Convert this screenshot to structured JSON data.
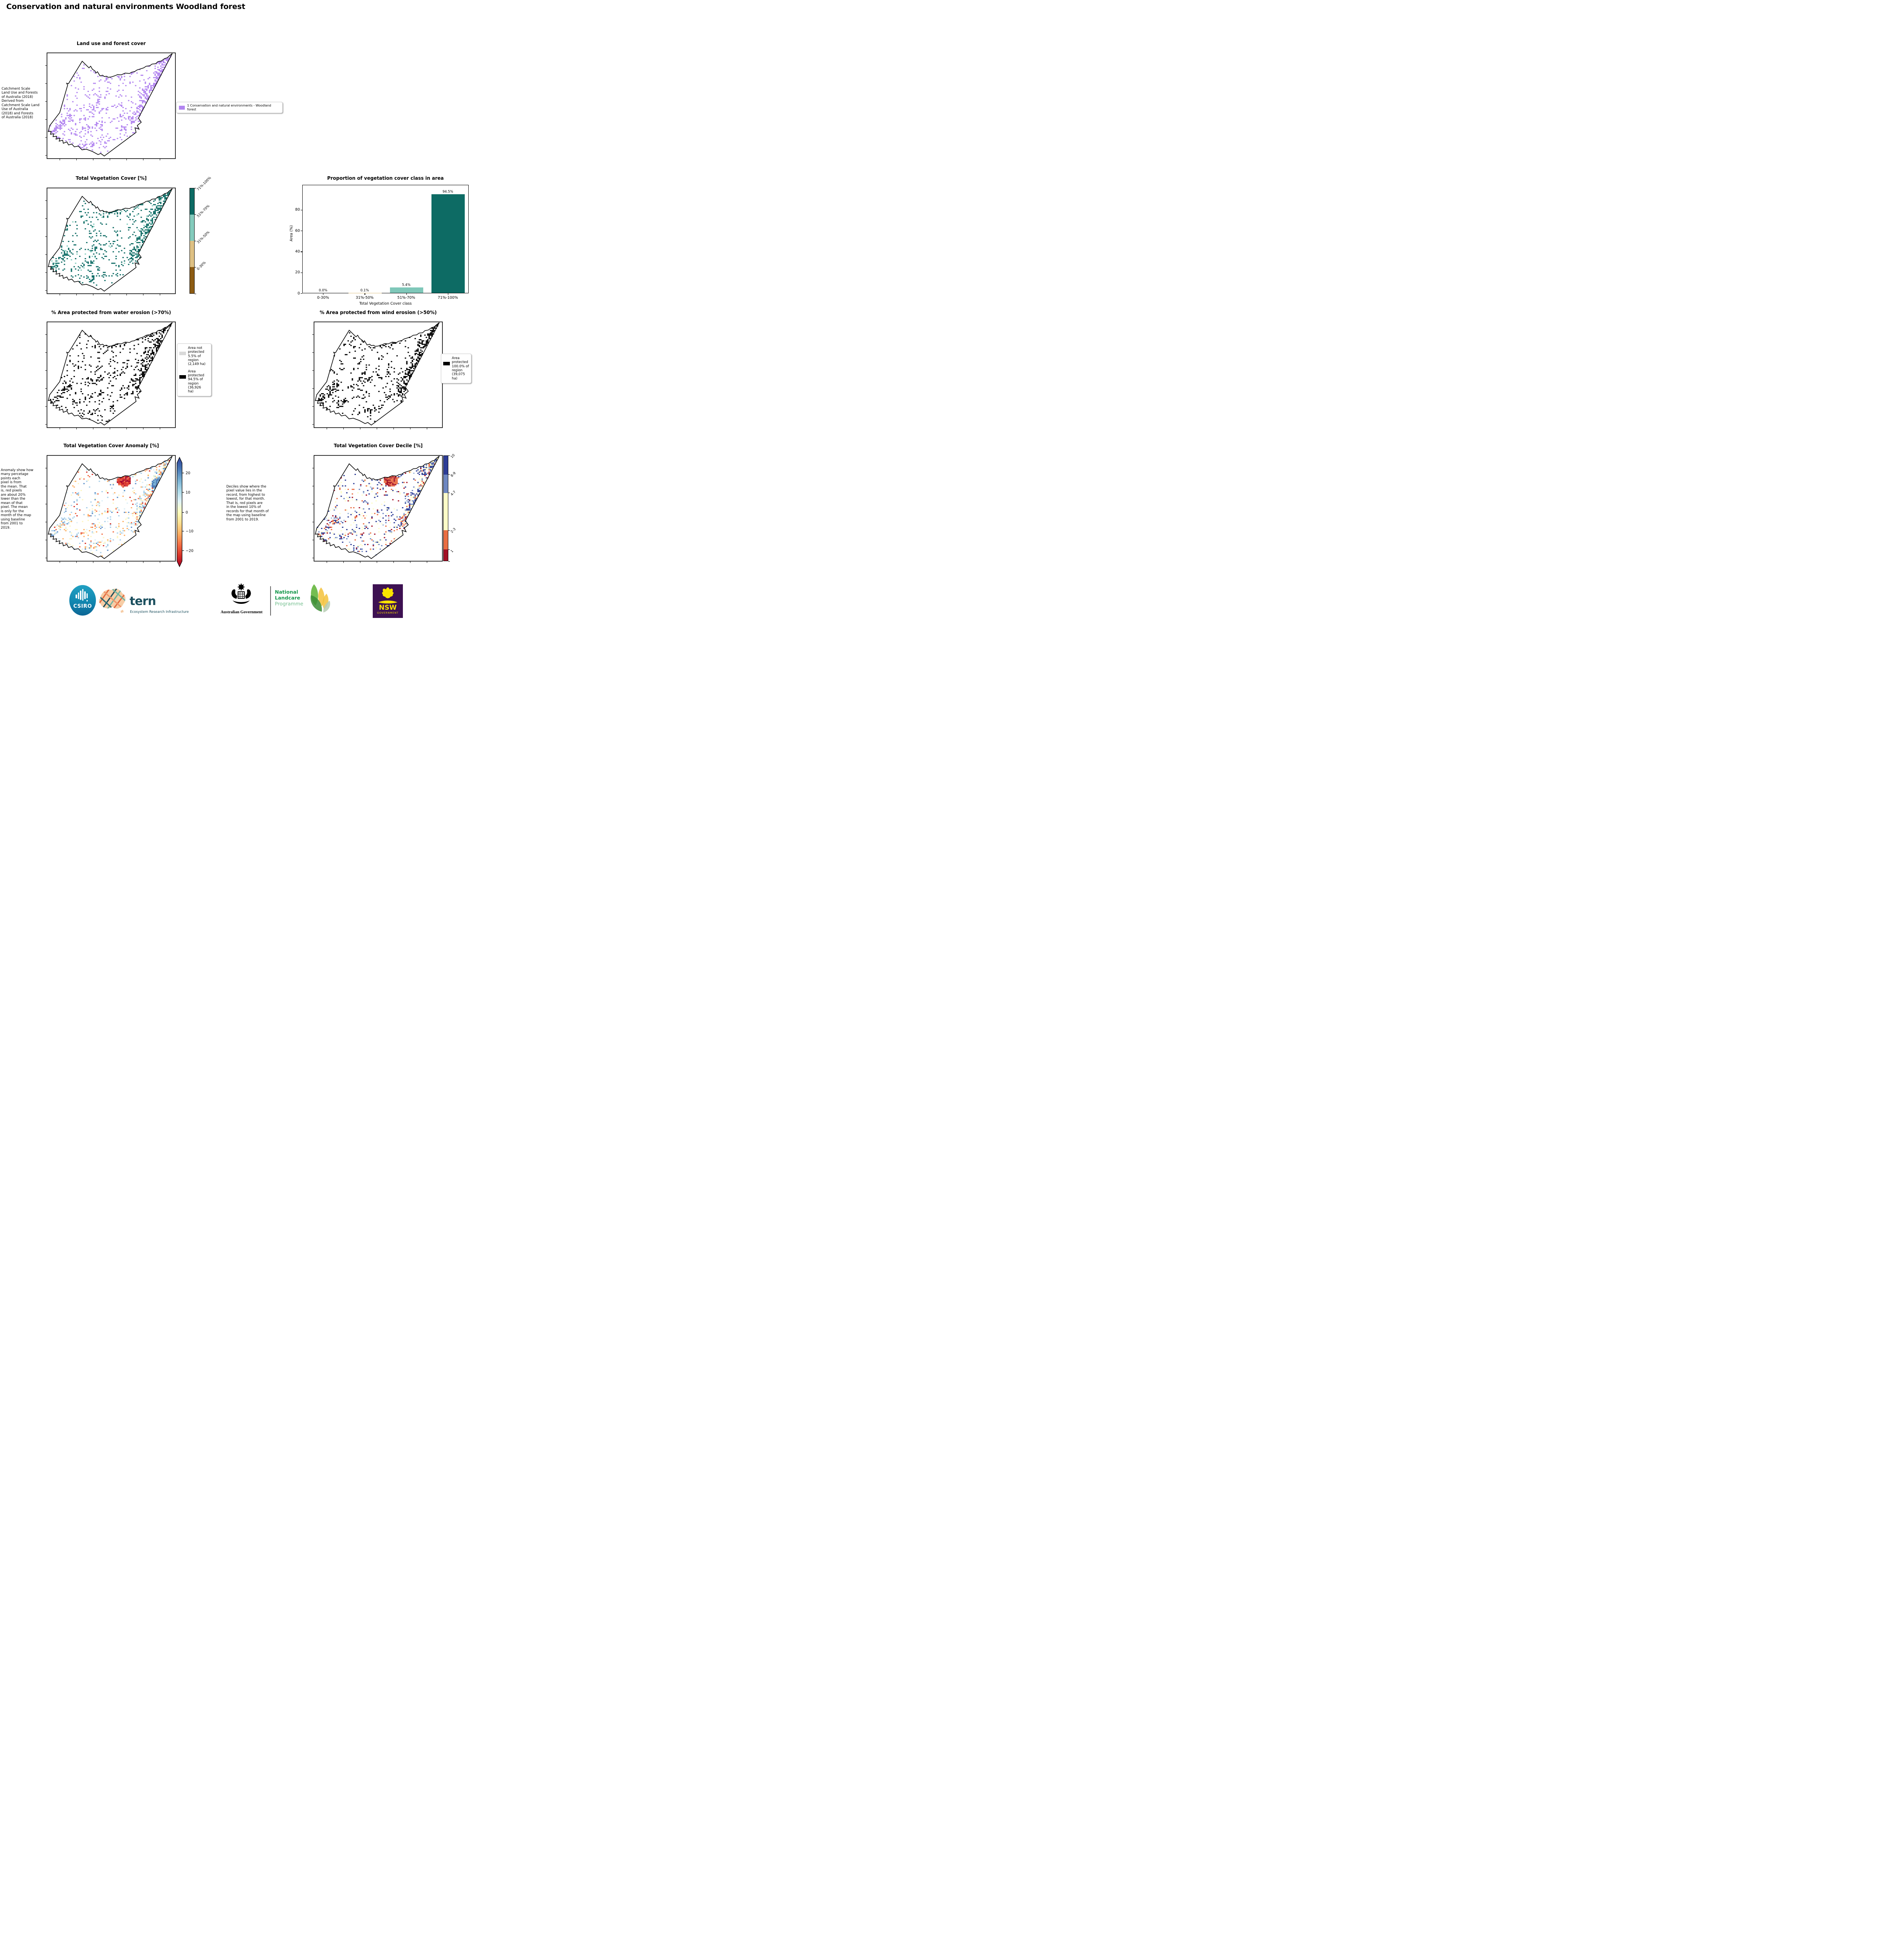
{
  "page_title": "Conservation and natural environments Woodland forest",
  "panels": {
    "landuse": {
      "title": "Land use and forest cover",
      "side_text": " Catchment Scale\nLand Use and Forests\nof Australia (2018)\nDerived from\nCatchment Scale Land\nUse of Australia\n(2018) and Forests\nof Australia (2018)",
      "legend_label": "1 Conservation and natural environments - Woodland\nforest",
      "pixel_color": "#b285f0"
    },
    "vegcover": {
      "title": "Total Vegetation Cover [%]",
      "colorbar": {
        "labels": [
          "71%-100%",
          "51%-70%",
          "31%-50%",
          "0-30%"
        ],
        "colors": [
          "#0d6b64",
          "#84ccbd",
          "#dfc184",
          "#8d5c13"
        ]
      }
    },
    "water": {
      "title": "% Area protected from water erosion (>70%)",
      "legend": [
        {
          "label": "Area not\nprotected\n5.5% of\nregion\n(2,149 ha)",
          "color": "#d9d9d9"
        },
        {
          "label": "Area\nprotected\n94.5% of\nregion\n(36,926\nha)",
          "color": "#000000"
        }
      ]
    },
    "wind": {
      "title": "% Area protected from wind erosion (>50%)",
      "legend": [
        {
          "label": "Area\nprotected\n100.0% of\nregion\n(39,075\nha)",
          "color": "#000000"
        }
      ]
    },
    "anomaly": {
      "title": "Total Vegetation Cover Anomaly [%]",
      "side_text": "Anomaly show how\nmany percetage\npoints each\npixel is from\nthe mean. That\nis, red pixels\nare about 20%\nlower than the\nmean of that\npixel. The mean\nis only for the\nmonth of the map\nusing baseline\nfrom 2001 to\n2019.",
      "colorbar_ticks": [
        "20",
        "10",
        "0",
        "−10",
        "−20"
      ],
      "gradient": [
        "#2e3f97",
        "#4575b4",
        "#74add1",
        "#abd9e9",
        "#e0f3f8",
        "#ffffbf",
        "#fee090",
        "#fdae61",
        "#f46d43",
        "#d73027",
        "#a50026"
      ]
    },
    "decile": {
      "title": "Total Vegetation Cover Decile [%]",
      "side_text": "Deciles show where the\npixel value lies in the\nrecord, from highest to\nlowest, for that month.\nThat is, red pixels are\nin the lowest 10% of\nrecords for that month of\nthe map using baseline\nfrom 2001 to 2019.",
      "colorbar": {
        "labels": [
          "10",
          "8-9",
          "4-7",
          "2-3",
          "1"
        ],
        "colors": [
          "#2d3d96",
          "#6e87c1",
          "#fdfcc8",
          "#e96e43",
          "#a31126"
        ],
        "fractions": [
          0,
          0.179,
          0.354,
          0.709,
          0.891,
          1.0
        ]
      }
    }
  },
  "chart_data": {
    "type": "bar",
    "title": "Proportion of vegetation cover class in area",
    "categories": [
      "0-30%",
      "31%-50%",
      "51%-70%",
      "71%-100%"
    ],
    "values": [
      0.0,
      0.1,
      5.4,
      94.5
    ],
    "value_labels": [
      "0.0%",
      "0.1%",
      "5.4%",
      "94.5%"
    ],
    "bar_colors": [
      "#8d5c13",
      "#dfc184",
      "#7fc7b9",
      "#0d6b64"
    ],
    "xlabel": "Total Vegetation Cover class",
    "ylabel": "Area (%)",
    "ylim": [
      0,
      104
    ],
    "yticks": [
      0,
      20,
      40,
      60,
      80
    ],
    "grid": false,
    "legend_position": "none"
  },
  "footer": {
    "csiro_label": "CSIRO",
    "tern_label": "tern",
    "tern_sub": "Ecosystem Research Infrastructure",
    "ausgov_label": "Australian Government",
    "landcare_line1": "National",
    "landcare_line2": "Landcare",
    "landcare_line3": "Programme",
    "nsw_label": "NSW",
    "nsw_sub": "GOVERNMENT"
  }
}
